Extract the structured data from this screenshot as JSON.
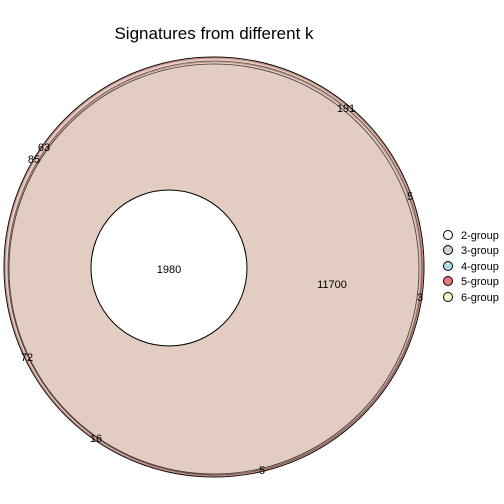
{
  "chart_data": {
    "type": "venn",
    "title": "Signatures from different k",
    "legend_position": "right",
    "legend": [
      {
        "label": "2-group",
        "color": "#ffffff"
      },
      {
        "label": "3-group",
        "color": "#d3d3d3"
      },
      {
        "label": "4-group",
        "color": "#add8e6"
      },
      {
        "label": "5-group",
        "color": "#e8787c"
      },
      {
        "label": "6-group",
        "color": "#fffacd"
      }
    ],
    "region_fill": "#e3cdc3",
    "inner_fill": "#ffffff",
    "region_counts": [
      {
        "id": "inner",
        "value": "1980"
      },
      {
        "id": "main",
        "value": "11700"
      },
      {
        "id": "r191",
        "value": "191"
      },
      {
        "id": "r63",
        "value": "63"
      },
      {
        "id": "r85",
        "value": "85"
      },
      {
        "id": "r5a",
        "value": "5"
      },
      {
        "id": "r3",
        "value": "3"
      },
      {
        "id": "r72",
        "value": "72"
      },
      {
        "id": "r16",
        "value": "16"
      },
      {
        "id": "r5b",
        "value": "5"
      }
    ]
  }
}
